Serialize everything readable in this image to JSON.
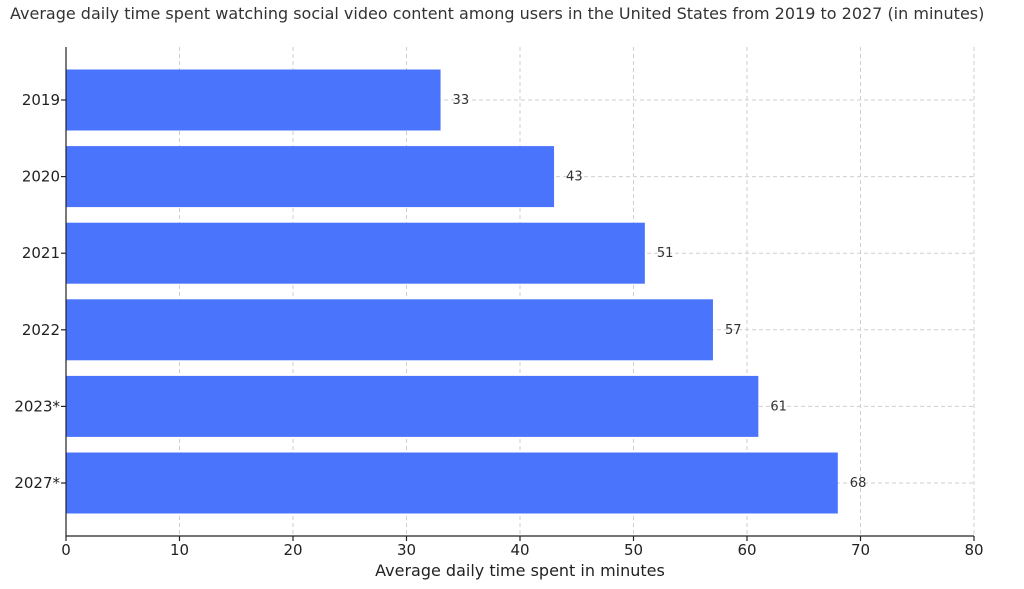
{
  "chart_data": {
    "type": "bar",
    "orientation": "horizontal",
    "title": "Average daily time spent watching social video content among users in the United States from 2019 to 2027 (in minutes)",
    "xlabel": "Average daily time spent in minutes",
    "ylabel": "",
    "categories": [
      "2019",
      "2020",
      "2021",
      "2022",
      "2023*",
      "2027*"
    ],
    "values": [
      33,
      43,
      51,
      57,
      61,
      68
    ],
    "xlim": [
      0,
      80
    ],
    "xticks": [
      0,
      10,
      20,
      30,
      40,
      50,
      60,
      70,
      80
    ],
    "grid": true,
    "bar_color": "#4a74fc"
  }
}
